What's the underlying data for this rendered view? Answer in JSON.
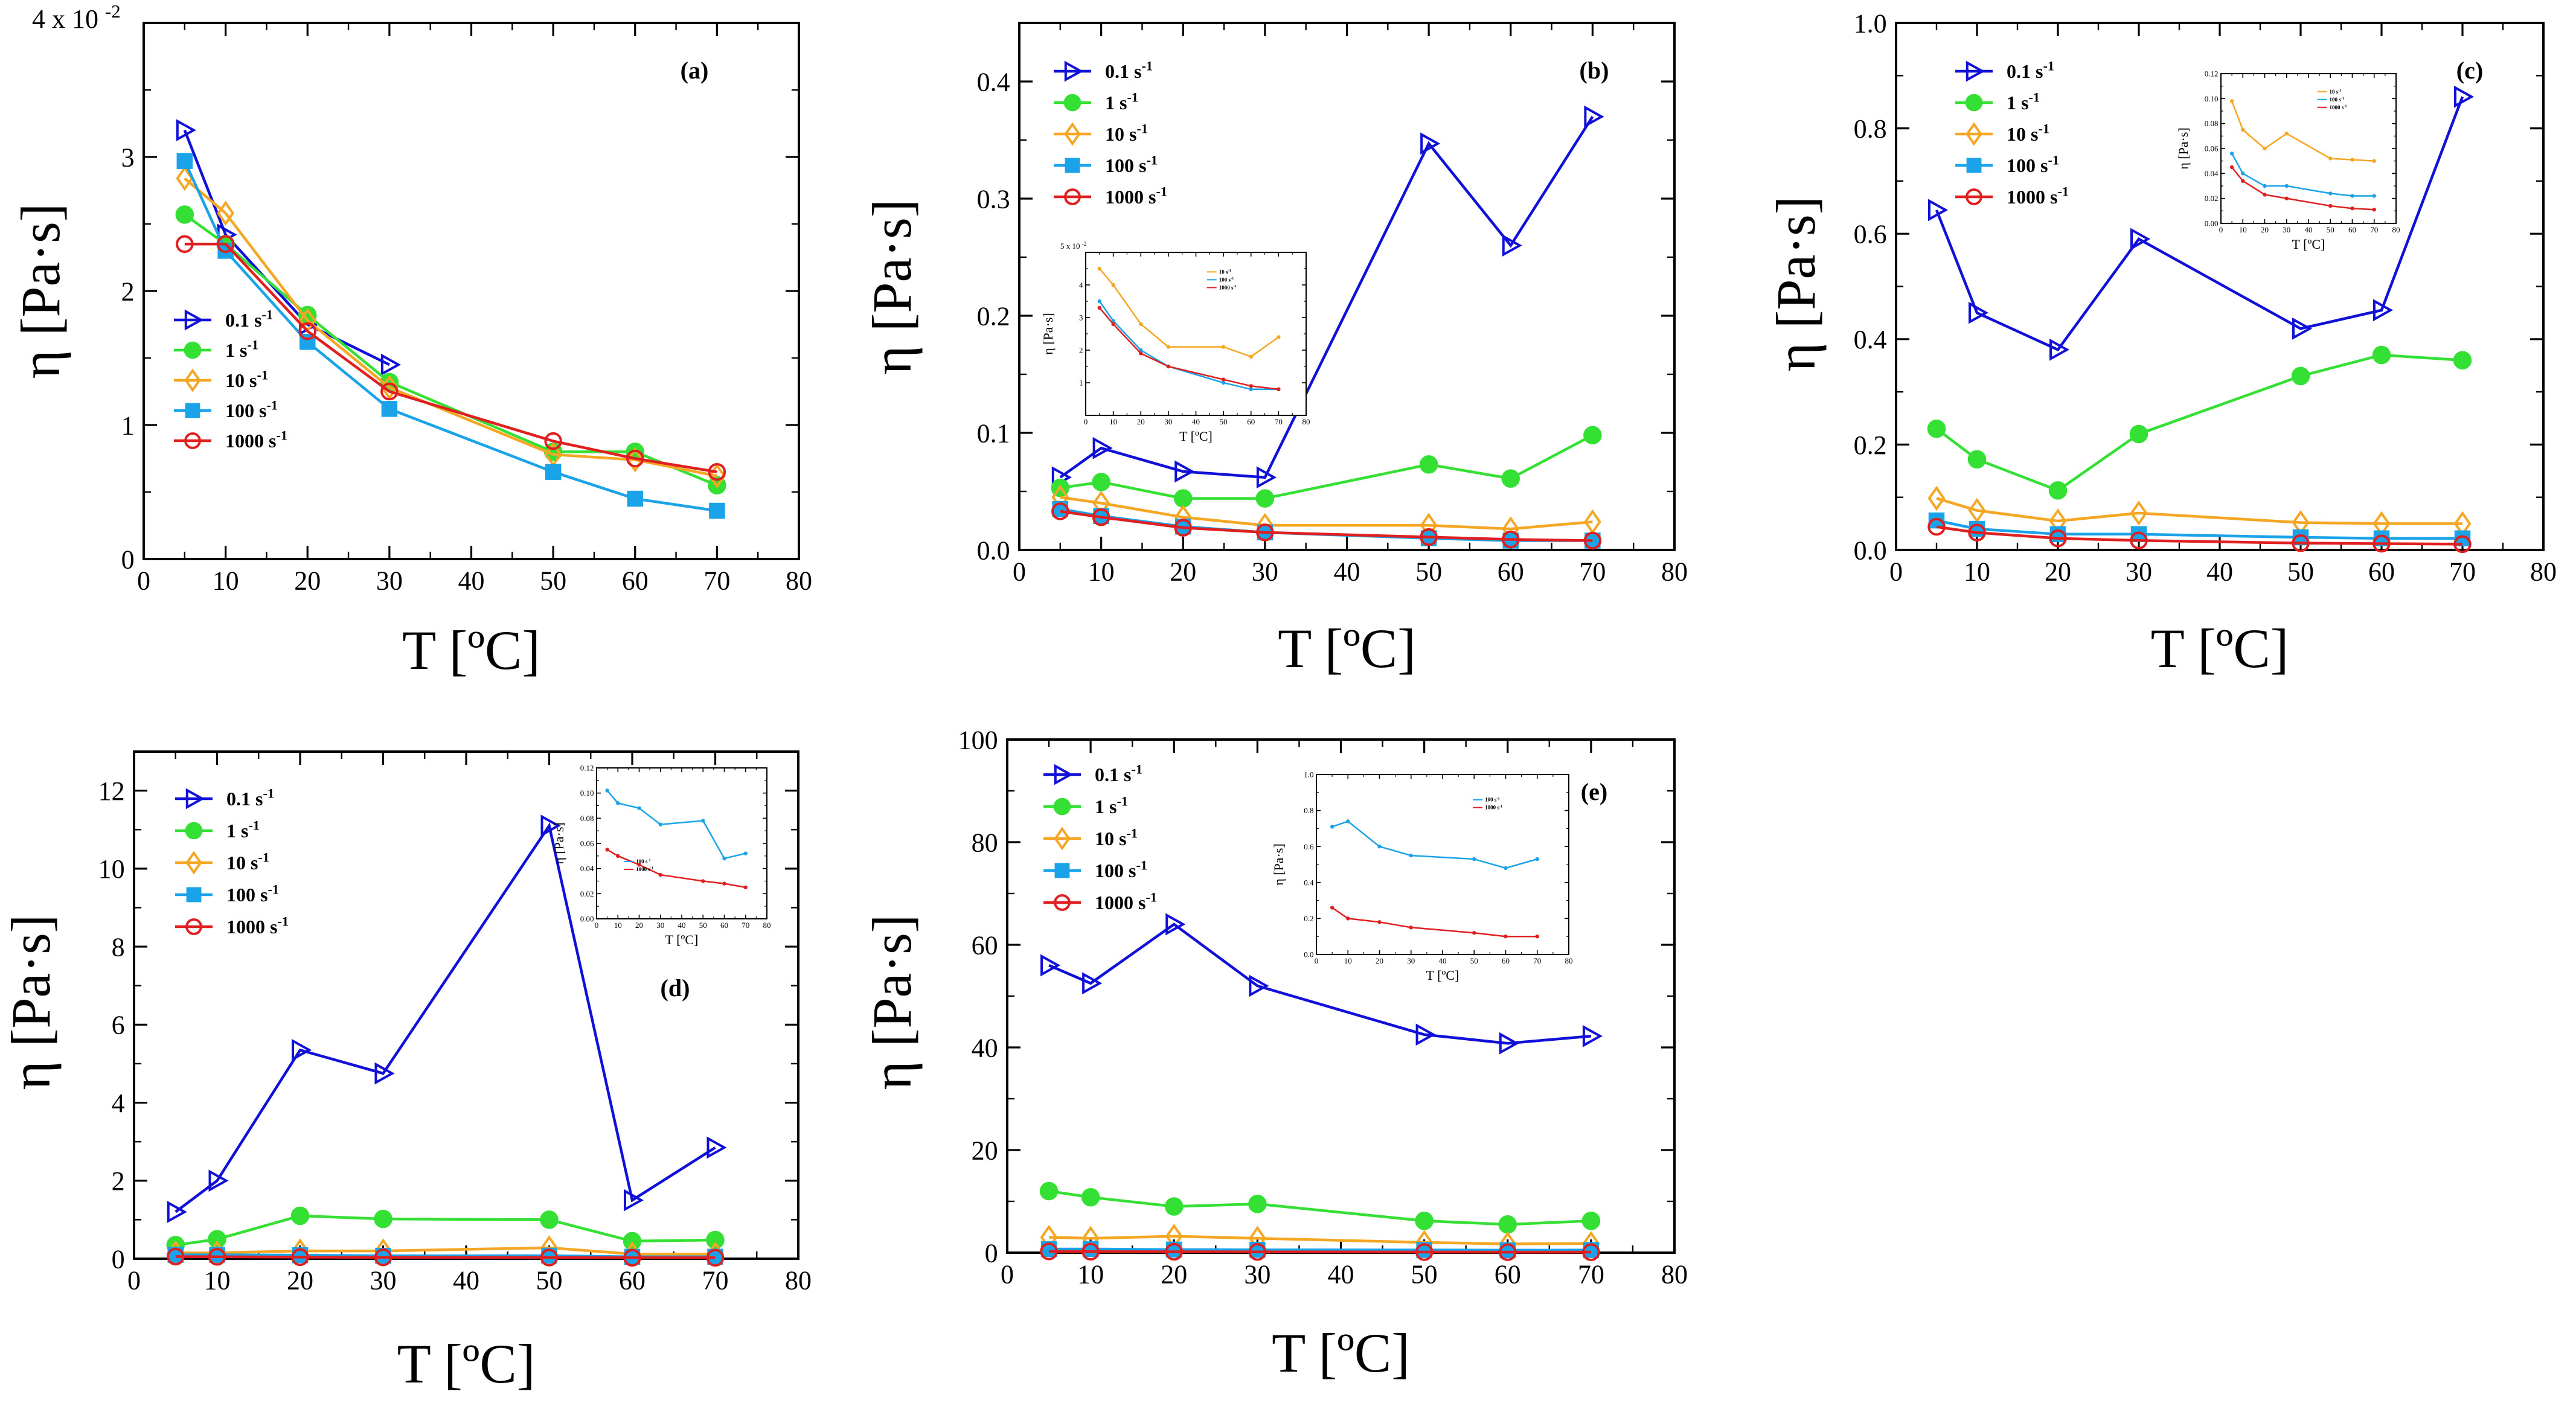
{
  "colors": {
    "s01": "#1010d8",
    "s1": "#33e033",
    "s10": "#f5a623",
    "s100": "#1aa3e8",
    "s1000": "#e02020"
  },
  "legend_labels": [
    "0.1 s",
    "1 s",
    "10 s",
    "100 s",
    "1000 s"
  ],
  "legend_exponent": "-1",
  "inset_legend_labels": [
    "100 s",
    "1000 s"
  ],
  "chart_data": [
    {
      "type": "line",
      "panel": "(a)",
      "xlabel": "T [ºC]",
      "ylabel": "η [Pa·s]",
      "xlim": [
        0,
        80
      ],
      "ylim": [
        0,
        4
      ],
      "x_ticks": [
        0,
        10,
        20,
        30,
        40,
        50,
        60,
        70,
        80
      ],
      "y_ticks": [
        0,
        1,
        2,
        3
      ],
      "y_multiplier": "4 x 10",
      "y_multiplier_exp": "-2",
      "series": [
        {
          "key": "s01",
          "x": [
            5,
            10,
            20,
            30
          ],
          "values": [
            3.2,
            2.42,
            1.75,
            1.45
          ]
        },
        {
          "key": "s1",
          "x": [
            5,
            10,
            20,
            30,
            50,
            60,
            70
          ],
          "values": [
            2.57,
            2.35,
            1.82,
            1.32,
            0.8,
            0.8,
            0.55
          ]
        },
        {
          "key": "s10",
          "x": [
            5,
            10,
            20,
            30,
            50,
            60,
            70
          ],
          "values": [
            2.84,
            2.58,
            1.78,
            1.28,
            0.78,
            0.74,
            0.62
          ]
        },
        {
          "key": "s100",
          "x": [
            5,
            10,
            20,
            30,
            50,
            60,
            70
          ],
          "values": [
            2.97,
            2.3,
            1.62,
            1.12,
            0.65,
            0.45,
            0.36
          ]
        },
        {
          "key": "s1000",
          "x": [
            5,
            10,
            20,
            30,
            50,
            60,
            70
          ],
          "values": [
            2.35,
            2.35,
            1.7,
            1.25,
            0.88,
            0.75,
            0.65
          ]
        }
      ]
    },
    {
      "type": "line",
      "panel": "(b)",
      "xlabel": "T [ºC]",
      "ylabel": "η [Pa·s]",
      "xlim": [
        0,
        80
      ],
      "ylim": [
        0,
        0.45
      ],
      "x_ticks": [
        0,
        10,
        20,
        30,
        40,
        50,
        60,
        70,
        80
      ],
      "y_ticks": [
        0,
        0.1,
        0.2,
        0.3,
        0.4
      ],
      "y_tick_labels": [
        "0.0",
        "0.1",
        "0.2",
        "0.3",
        "0.4"
      ],
      "series": [
        {
          "key": "s01",
          "x": [
            5,
            10,
            20,
            30,
            50,
            60,
            70
          ],
          "values": [
            0.062,
            0.087,
            0.067,
            0.062,
            0.347,
            0.26,
            0.37
          ]
        },
        {
          "key": "s1",
          "x": [
            5,
            10,
            20,
            30,
            50,
            60,
            70
          ],
          "values": [
            0.053,
            0.058,
            0.044,
            0.044,
            0.073,
            0.061,
            0.098
          ]
        },
        {
          "key": "s10",
          "x": [
            5,
            10,
            20,
            30,
            50,
            60,
            70
          ],
          "values": [
            0.045,
            0.04,
            0.028,
            0.021,
            0.021,
            0.018,
            0.024
          ]
        },
        {
          "key": "s100",
          "x": [
            5,
            10,
            20,
            30,
            50,
            60,
            70
          ],
          "values": [
            0.035,
            0.029,
            0.02,
            0.015,
            0.01,
            0.008,
            0.008
          ]
        },
        {
          "key": "s1000",
          "x": [
            5,
            10,
            20,
            30,
            50,
            60,
            70
          ],
          "values": [
            0.033,
            0.028,
            0.019,
            0.015,
            0.011,
            0.009,
            0.008
          ]
        }
      ],
      "inset": {
        "xlabel": "T [ºC]",
        "ylabel": "η [Pa·s]",
        "xlim": [
          0,
          80
        ],
        "ylim": [
          0,
          5
        ],
        "x_ticks": [
          0,
          10,
          20,
          30,
          40,
          50,
          60,
          70,
          80
        ],
        "y_ticks": [
          1,
          2,
          3,
          4
        ],
        "y_multiplier": "5 x 10",
        "y_multiplier_exp": "-2",
        "legend": [
          "10 s",
          "100 s",
          "1000 s"
        ],
        "series": [
          {
            "key": "s10",
            "x": [
              5,
              10,
              20,
              30,
              50,
              60,
              70
            ],
            "values": [
              4.5,
              4.0,
              2.8,
              2.1,
              2.1,
              1.8,
              2.4
            ]
          },
          {
            "key": "s100",
            "x": [
              5,
              10,
              20,
              30,
              50,
              60,
              70
            ],
            "values": [
              3.5,
              2.9,
              2.0,
              1.5,
              1.0,
              0.8,
              0.8
            ]
          },
          {
            "key": "s1000",
            "x": [
              5,
              10,
              20,
              30,
              50,
              60,
              70
            ],
            "values": [
              3.3,
              2.8,
              1.9,
              1.5,
              1.1,
              0.9,
              0.8
            ]
          }
        ]
      }
    },
    {
      "type": "line",
      "panel": "(c)",
      "xlabel": "T [ºC]",
      "ylabel": "η [Pa·s]",
      "xlim": [
        0,
        80
      ],
      "ylim": [
        0,
        1.0
      ],
      "x_ticks": [
        0,
        10,
        20,
        30,
        40,
        50,
        60,
        70,
        80
      ],
      "y_ticks": [
        0,
        0.2,
        0.4,
        0.6,
        0.8,
        1.0
      ],
      "y_tick_labels": [
        "0.0",
        "0.2",
        "0.4",
        "0.6",
        "0.8",
        "1.0"
      ],
      "series": [
        {
          "key": "s01",
          "x": [
            5,
            10,
            20,
            30,
            50,
            60,
            70
          ],
          "values": [
            0.645,
            0.45,
            0.38,
            0.59,
            0.42,
            0.455,
            0.86
          ]
        },
        {
          "key": "s1",
          "x": [
            5,
            10,
            20,
            30,
            50,
            60,
            70
          ],
          "values": [
            0.23,
            0.172,
            0.113,
            0.22,
            0.33,
            0.37,
            0.36
          ]
        },
        {
          "key": "s10",
          "x": [
            5,
            10,
            20,
            30,
            50,
            60,
            70
          ],
          "values": [
            0.098,
            0.075,
            0.055,
            0.07,
            0.052,
            0.05,
            0.05
          ]
        },
        {
          "key": "s100",
          "x": [
            5,
            10,
            20,
            30,
            50,
            60,
            70
          ],
          "values": [
            0.056,
            0.04,
            0.03,
            0.03,
            0.024,
            0.022,
            0.022
          ]
        },
        {
          "key": "s1000",
          "x": [
            5,
            10,
            20,
            30,
            50,
            60,
            70
          ],
          "values": [
            0.044,
            0.033,
            0.022,
            0.018,
            0.013,
            0.012,
            0.011
          ]
        }
      ],
      "inset": {
        "xlabel": "T [ºC]",
        "ylabel": "η [Pa·s]",
        "xlim": [
          0,
          80
        ],
        "ylim": [
          0,
          0.12
        ],
        "x_ticks": [
          0,
          10,
          20,
          30,
          40,
          50,
          60,
          70,
          80
        ],
        "y_ticks": [
          0,
          0.02,
          0.04,
          0.06,
          0.08,
          0.1,
          0.12
        ],
        "y_tick_labels": [
          "0.00",
          "0.02",
          "0.04",
          "0.06",
          "0.08",
          "0.10",
          "0.12"
        ],
        "legend": [
          "10 s",
          "100 s",
          "1000 s"
        ],
        "series": [
          {
            "key": "s10",
            "x": [
              5,
              10,
              20,
              30,
              50,
              60,
              70
            ],
            "values": [
              0.098,
              0.075,
              0.06,
              0.072,
              0.052,
              0.051,
              0.05
            ]
          },
          {
            "key": "s100",
            "x": [
              5,
              10,
              20,
              30,
              50,
              60,
              70
            ],
            "values": [
              0.056,
              0.04,
              0.03,
              0.03,
              0.024,
              0.022,
              0.022
            ]
          },
          {
            "key": "s1000",
            "x": [
              5,
              10,
              20,
              30,
              50,
              60,
              70
            ],
            "values": [
              0.045,
              0.034,
              0.023,
              0.02,
              0.014,
              0.012,
              0.011
            ]
          }
        ]
      }
    },
    {
      "type": "line",
      "panel": "(d)",
      "xlabel": "T [ºC]",
      "ylabel": "η [Pa·s]",
      "xlim": [
        0,
        80
      ],
      "ylim": [
        0,
        13
      ],
      "x_ticks": [
        0,
        10,
        20,
        30,
        40,
        50,
        60,
        70,
        80
      ],
      "y_ticks": [
        0,
        2,
        4,
        6,
        8,
        10,
        12
      ],
      "series": [
        {
          "key": "s01",
          "x": [
            5,
            10,
            20,
            30,
            50,
            60,
            70
          ],
          "values": [
            1.2,
            2.0,
            5.35,
            4.75,
            11.1,
            1.5,
            2.85
          ]
        },
        {
          "key": "s1",
          "x": [
            5,
            10,
            20,
            30,
            50,
            60,
            70
          ],
          "values": [
            0.35,
            0.5,
            1.1,
            1.02,
            1.0,
            0.45,
            0.48
          ]
        },
        {
          "key": "s10",
          "x": [
            5,
            10,
            20,
            30,
            50,
            60,
            70
          ],
          "values": [
            0.15,
            0.15,
            0.2,
            0.2,
            0.28,
            0.12,
            0.12
          ]
        },
        {
          "key": "s100",
          "x": [
            5,
            10,
            20,
            30,
            50,
            60,
            70
          ],
          "values": [
            0.1,
            0.1,
            0.09,
            0.075,
            0.078,
            0.05,
            0.05
          ]
        },
        {
          "key": "s1000",
          "x": [
            5,
            10,
            20,
            30,
            50,
            60,
            70
          ],
          "values": [
            0.055,
            0.05,
            0.04,
            0.035,
            0.03,
            0.025,
            0.025
          ]
        }
      ],
      "inset": {
        "xlabel": "T [ºC]",
        "ylabel": "η [Pa·s]",
        "xlim": [
          0,
          80
        ],
        "ylim": [
          0,
          0.12
        ],
        "x_ticks": [
          0,
          10,
          20,
          30,
          40,
          50,
          60,
          70,
          80
        ],
        "y_ticks": [
          0,
          0.02,
          0.04,
          0.06,
          0.08,
          0.1,
          0.12
        ],
        "y_tick_labels": [
          "0.00",
          "0.02",
          "0.04",
          "0.06",
          "0.08",
          "0.10",
          "0.12"
        ],
        "legend": [
          "100 s",
          "1000 s"
        ],
        "series": [
          {
            "key": "s100",
            "x": [
              5,
              10,
              20,
              30,
              50,
              60,
              70
            ],
            "values": [
              0.102,
              0.092,
              0.088,
              0.075,
              0.078,
              0.048,
              0.052
            ]
          },
          {
            "key": "s1000",
            "x": [
              5,
              10,
              20,
              30,
              50,
              60,
              70
            ],
            "values": [
              0.055,
              0.05,
              0.043,
              0.035,
              0.03,
              0.028,
              0.025
            ]
          }
        ]
      }
    },
    {
      "type": "line",
      "panel": "(e)",
      "xlabel": "T [ºC]",
      "ylabel": "η [Pa·s]",
      "xlim": [
        0,
        80
      ],
      "ylim": [
        0,
        100
      ],
      "x_ticks": [
        0,
        10,
        20,
        30,
        40,
        50,
        60,
        70,
        80
      ],
      "y_ticks": [
        0,
        20,
        40,
        60,
        80,
        100
      ],
      "series": [
        {
          "key": "s01",
          "x": [
            5,
            10,
            20,
            30,
            50,
            60,
            70
          ],
          "values": [
            56,
            52.5,
            64,
            52,
            42.5,
            40.8,
            42.2
          ]
        },
        {
          "key": "s1",
          "x": [
            5,
            10,
            20,
            30,
            50,
            60,
            70
          ],
          "values": [
            12,
            10.8,
            9,
            9.5,
            6.2,
            5.5,
            6.2
          ]
        },
        {
          "key": "s10",
          "x": [
            5,
            10,
            20,
            30,
            50,
            60,
            70
          ],
          "values": [
            3.0,
            2.8,
            3.2,
            2.8,
            2.0,
            1.7,
            1.8
          ]
        },
        {
          "key": "s100",
          "x": [
            5,
            10,
            20,
            30,
            50,
            60,
            70
          ],
          "values": [
            0.7,
            0.72,
            0.6,
            0.55,
            0.53,
            0.48,
            0.52
          ]
        },
        {
          "key": "s1000",
          "x": [
            5,
            10,
            20,
            30,
            50,
            60,
            70
          ],
          "values": [
            0.25,
            0.2,
            0.18,
            0.15,
            0.12,
            0.11,
            0.1
          ]
        }
      ],
      "inset": {
        "xlabel": "T [ºC]",
        "ylabel": "η [Pa·s]",
        "xlim": [
          0,
          80
        ],
        "ylim": [
          0,
          1.0
        ],
        "x_ticks": [
          0,
          10,
          20,
          30,
          40,
          50,
          60,
          70,
          80
        ],
        "y_ticks": [
          0,
          0.2,
          0.4,
          0.6,
          0.8,
          1.0
        ],
        "y_tick_labels": [
          "0.0",
          "0.2",
          "0.4",
          "0.6",
          "0.8",
          "1.0"
        ],
        "legend": [
          "100 s",
          "1000 s"
        ],
        "series": [
          {
            "key": "s100",
            "x": [
              5,
              10,
              20,
              30,
              50,
              60,
              70
            ],
            "values": [
              0.71,
              0.74,
              0.6,
              0.55,
              0.53,
              0.48,
              0.53
            ]
          },
          {
            "key": "s1000",
            "x": [
              5,
              10,
              20,
              30,
              50,
              60,
              70
            ],
            "values": [
              0.26,
              0.2,
              0.18,
              0.15,
              0.12,
              0.1,
              0.1
            ]
          }
        ]
      }
    }
  ]
}
